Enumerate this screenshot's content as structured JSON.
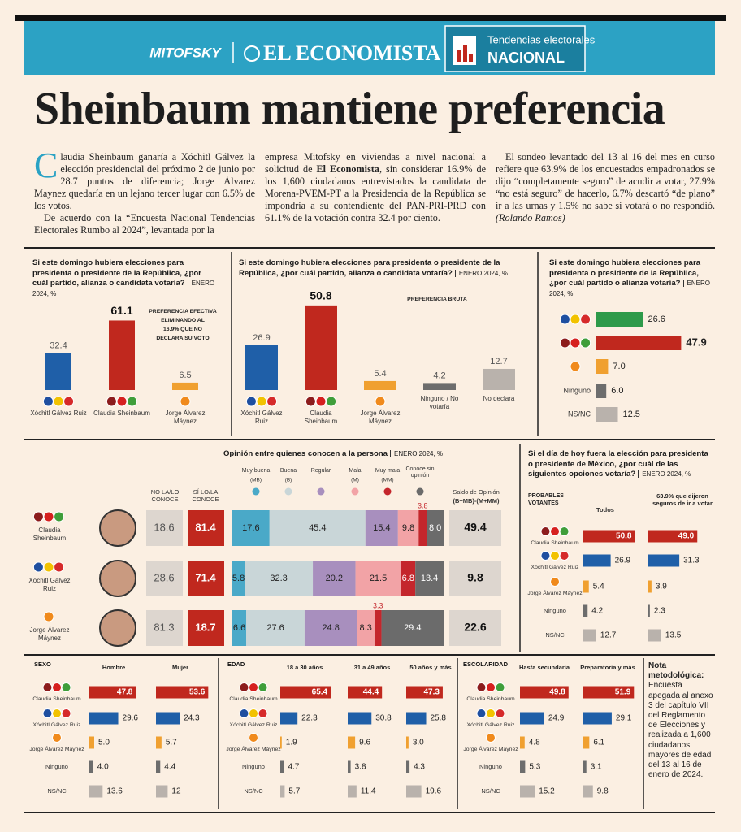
{
  "header": {
    "brand_left": "MITOFSKY",
    "brand_main": "EL ECONOMISTA",
    "section_kicker": "Tendencias electorales",
    "section": "NACIONAL"
  },
  "headline": "Sheinbaum mantiene preferencia",
  "article": {
    "p1": "Claudia Sheinbaum ganaría a Xóchitl Gálvez la elección presidencial del próximo 2 de junio por 28.7 puntos de diferencia; Jorge Álvarez Maynez quedaría en un lejano tercer lugar con 6.5% de los votos.",
    "p2": "De acuerdo con la “Encuesta Nacional Tendencias Electorales Rumbo al 2024”, levantada por la",
    "p3a": "empresa Mitofsky en viviendas a nivel nacional a solicitud de ",
    "p3b": "El Economista",
    "p3c": ", sin considerar 16.9% de los 1,600 ciudadanos entrevistados la candidata de Morena-PVEM-PT a la Presidencia de la República se impondría a su contendiente del PAN-PRI-PRD con 61.1% de la votación contra 32.4 por ciento.",
    "p4": "El sondeo levantado del 13 al 16 del mes en curso refiere que 63.9% de los encuestados empadronados se dijo “completamente seguro” de acudir a votar, 27.9% “no está seguro” de hacerlo, 6.7% descartó “de plano” ir a las urnas y 1.5% no sabe si votará o no respondió. ",
    "byline": "(Rolando Ramos)"
  },
  "charts": {
    "effective": {
      "title": "Si este domingo hubiera elecciones para presidenta o presidente de la República, ¿por cuál partido, alianza o candidata votaría?",
      "source": "ENERO 2024, %",
      "note": [
        "PREFERENCIA EFECTIVA",
        "ELIMINANDO AL",
        "16.9% QUE NO",
        "DECLARA SU VOTO"
      ],
      "categories": [
        "Xóchitl Gálvez Ruiz",
        "Claudia Sheinbaum",
        "Jorge Álvarez Máynez"
      ],
      "values": [
        32.4,
        61.1,
        6.5
      ],
      "colors": [
        "#1f5fa8",
        "#c0281e",
        "#f0a030"
      ]
    },
    "gross": {
      "title": "Si este domingo hubiera elecciones para presidenta o presidente de la República, ¿por cuál partido, alianza o candidata votaría?",
      "source": "ENERO 2024, %",
      "note": "PREFERENCIA BRUTA",
      "categories": [
        "Xóchitl Gálvez Ruiz",
        "Claudia Sheinbaum",
        "Jorge Álvarez Máynez",
        "Ninguno / No votaría",
        "No declara"
      ],
      "values": [
        26.9,
        50.8,
        5.4,
        4.2,
        12.7
      ],
      "colors": [
        "#1f5fa8",
        "#c0281e",
        "#f0a030",
        "#6d6d6d",
        "#b9b2ac"
      ]
    },
    "horizontal": {
      "title": "Si este domingo hubiera elecciones para presidenta o presidente de la República, ¿por cuál partido o alianza votaría?",
      "source": "ENERO 2024, %",
      "categories": [
        null,
        null,
        null,
        "Ninguno",
        "NS/NC"
      ],
      "values": [
        26.6,
        47.9,
        7.0,
        6.0,
        12.5
      ],
      "value_labels": [
        "26.6",
        "47.9",
        "7.0",
        "6.0",
        "12.5"
      ],
      "colors": [
        "#2e9a4a",
        "#c0281e",
        "#f0a030",
        "#6d6d6d",
        "#b9b2ac"
      ]
    },
    "opinion": {
      "title": "Opinión entre quienes conocen a la persona",
      "source": "ENERO 2024, %",
      "legend": [
        {
          "name": "Muy buena",
          "abbr": "(MB)"
        },
        {
          "name": "Buena",
          "abbr": "(B)"
        },
        {
          "name": "Regular"
        },
        {
          "name": "Mala",
          "abbr": "(M)"
        },
        {
          "name": "Muy mala",
          "abbr": "(MM)"
        },
        {
          "name": "Conoce sin opinión"
        }
      ],
      "colors": [
        "#4aa9c8",
        "#c9d6d8",
        "#a88fbe",
        "#f2a3a6",
        "#c4262c",
        "#6b6b6b"
      ],
      "columns": {
        "unknown": "NO LA/LO CONOCE",
        "known": "SÍ LO/LA CONOCE",
        "balance": "Saldo de Opinión",
        "balance_formula": "(B+MB)-(M+MM)"
      },
      "rows": [
        {
          "name": "Claudia Sheinbaum",
          "unknown": 18.6,
          "known": 81.4,
          "segments": [
            17.6,
            45.4,
            15.4,
            9.8,
            3.8,
            8.0
          ],
          "segment_labels": [
            "17.6",
            "45.4",
            "15.4",
            "9.8",
            "3.8",
            "8.0"
          ],
          "balance": 49.4
        },
        {
          "name": "Xóchitl Gálvez Ruiz",
          "unknown": 28.6,
          "known": 71.4,
          "segments": [
            5.8,
            32.3,
            20.2,
            21.5,
            6.8,
            13.4
          ],
          "balance": 9.8
        },
        {
          "name": "Jorge Álvarez Máynez",
          "unknown": 81.3,
          "known": 18.7,
          "segments": [
            6.6,
            27.6,
            24.8,
            8.3,
            3.3,
            29.4
          ],
          "balance": 22.6
        }
      ]
    },
    "voters": {
      "title": "Si el día de hoy fuera la elección para presidenta o presidente de México, ¿por cuál de las siguientes opciones votaría?",
      "source": "ENERO 2024, %",
      "group_label": "PROBABLES VOTANTES",
      "categories": [
        "Claudia Sheinbaum",
        "Xóchitl Gálvez Ruiz",
        "Jorge Álvarez Máynez",
        "Ninguno",
        "NS/NC"
      ],
      "colors": [
        "#c0281e",
        "#1f5fa8",
        "#f0a030",
        "#6d6d6d",
        "#b9b2ac"
      ],
      "series": [
        {
          "name": "Todos",
          "values": [
            50.8,
            26.9,
            5.4,
            4.2,
            12.7
          ]
        },
        {
          "name": "63.9% que dijeron seguros de ir a votar",
          "values": [
            49.0,
            31.3,
            3.9,
            2.3,
            13.5
          ],
          "value_labels": [
            "49.0",
            "31.3",
            "3.9",
            "2.3",
            "13.5"
          ]
        }
      ]
    },
    "demographics": [
      {
        "label": "SEXO",
        "categories": [
          "Claudia Sheinbaum",
          "Xóchitl Gálvez Ruiz",
          "Jorge Álvarez Máynez",
          "Ninguno",
          "NS/NC"
        ],
        "series": [
          {
            "name": "Hombre",
            "values": [
              47.8,
              29.6,
              5.0,
              4.0,
              13.6
            ],
            "value_labels": [
              "47.8",
              "29.6",
              "5.0",
              "4.0",
              "13.6"
            ]
          },
          {
            "name": "Mujer",
            "values": [
              53.6,
              24.3,
              5.7,
              4.4,
              12
            ]
          }
        ]
      },
      {
        "label": "EDAD",
        "categories": [
          "Claudia Sheinbaum",
          "Xóchitl Gálvez Ruiz",
          "Jorge Álvarez Máynez",
          "Ninguno",
          "NS/NC"
        ],
        "series": [
          {
            "name": "18 a 30 años",
            "values": [
              65.4,
              22.3,
              1.9,
              4.7,
              5.7
            ]
          },
          {
            "name": "31 a 49 años",
            "values": [
              44.4,
              30.8,
              9.6,
              3.8,
              11.4
            ]
          },
          {
            "name": "50 años y más",
            "values": [
              47.3,
              25.8,
              3.0,
              4.3,
              19.6
            ],
            "value_labels": [
              "47.3",
              "25.8",
              "3.0",
              "4.3",
              "19.6"
            ]
          }
        ]
      },
      {
        "label": "ESCOLARIDAD",
        "categories": [
          "Claudia Sheinbaum",
          "Xóchitl Gálvez Ruiz",
          "Jorge Álvarez Máynez",
          "Ninguno",
          "NS/NC"
        ],
        "series": [
          {
            "name": "Hasta secundaria",
            "values": [
              49.8,
              24.9,
              4.8,
              5.3,
              15.2
            ]
          },
          {
            "name": "Preparatoria y más",
            "values": [
              51.9,
              29.1,
              6.1,
              3.1,
              9.8
            ]
          }
        ]
      }
    ],
    "demographics_colors": [
      "#c0281e",
      "#1f5fa8",
      "#f0a030",
      "#6d6d6d",
      "#b9b2ac"
    ]
  },
  "note": {
    "title": "Nota metodológica:",
    "text": "Encuesta apegada al anexo 3 del capítulo VII del Reglamento de Elecciones y realizada a 1,600 ciudadanos mayores de edad del 13 al 16 de enero de 2024."
  }
}
